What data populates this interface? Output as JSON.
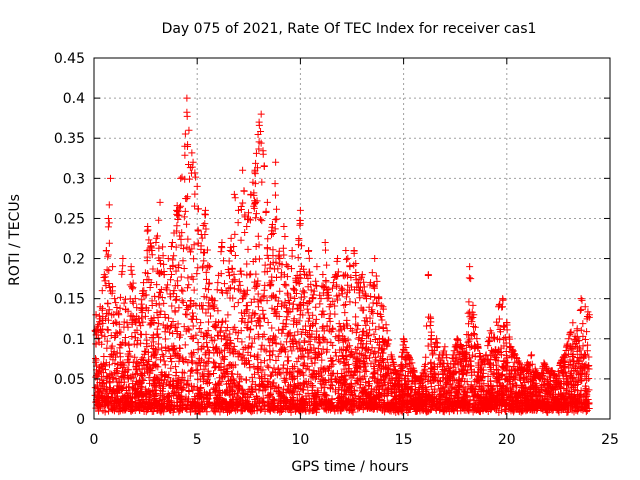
{
  "chart_data": {
    "type": "scatter",
    "title": "Day 075 of 2021, Rate Of TEC Index for receiver cas1",
    "xlabel": "GPS time / hours",
    "ylabel": "ROTI / TECUs",
    "xlim": [
      0,
      25
    ],
    "ylim": [
      0,
      0.45
    ],
    "x_ticks": [
      "0",
      "5",
      "10",
      "15",
      "20",
      "25"
    ],
    "x_tick_values": [
      0,
      5,
      10,
      15,
      20,
      25
    ],
    "y_ticks": [
      "0",
      "0.05",
      "0.1",
      "0.15",
      "0.2",
      "0.25",
      "0.3",
      "0.35",
      "0.4",
      "0.45"
    ],
    "y_tick_values": [
      0,
      0.05,
      0.1,
      0.15,
      0.2,
      0.25,
      0.3,
      0.35,
      0.4,
      0.45
    ],
    "grid": true,
    "marker": "plus",
    "color": "#ff0000",
    "series": [
      {
        "x": [
          0.1,
          0.2,
          0.3,
          0.4,
          0.5,
          0.6,
          0.7,
          0.8,
          0.9,
          1.0,
          1.2,
          1.4,
          1.6,
          1.8,
          2.0,
          2.2,
          2.4,
          2.6,
          2.8,
          3.0,
          3.2,
          3.4,
          3.6,
          3.8,
          4.0,
          4.2,
          4.4,
          4.5,
          4.6,
          4.8,
          5.0,
          5.2,
          5.4,
          5.6,
          5.8,
          6.0,
          6.2,
          6.4,
          6.6,
          6.8,
          7.0,
          7.2,
          7.4,
          7.6,
          7.8,
          8.0,
          8.1,
          8.2,
          8.4,
          8.6,
          8.8,
          9.0,
          9.2,
          9.4,
          9.6,
          9.8,
          10.0,
          10.2,
          10.4,
          10.6,
          10.8,
          11.0,
          11.2,
          11.4,
          11.6,
          11.8,
          12.0,
          12.2,
          12.4,
          12.6,
          12.8,
          13.0,
          13.2,
          13.4,
          13.6,
          13.8,
          14.0,
          14.2,
          14.4,
          14.6,
          14.8,
          15.0,
          15.2,
          15.4,
          15.6,
          15.8,
          16.0,
          16.2,
          16.4,
          16.6,
          16.8,
          17.0,
          17.2,
          17.4,
          17.6,
          17.8,
          18.0,
          18.2,
          18.4,
          18.6,
          18.8,
          19.0,
          19.2,
          19.4,
          19.6,
          19.8,
          20.0,
          20.2,
          20.4,
          20.6,
          20.8,
          21.0,
          21.2,
          21.4,
          21.6,
          21.8,
          22.0,
          22.2,
          22.4,
          22.6,
          22.8,
          23.0,
          23.2,
          23.4,
          23.6,
          23.8,
          24.0
        ],
        "y": [
          0.13,
          0.11,
          0.14,
          0.16,
          0.18,
          0.21,
          0.25,
          0.3,
          0.19,
          0.15,
          0.13,
          0.2,
          0.12,
          0.19,
          0.15,
          0.12,
          0.17,
          0.24,
          0.21,
          0.22,
          0.27,
          0.18,
          0.2,
          0.22,
          0.26,
          0.3,
          0.34,
          0.4,
          0.36,
          0.32,
          0.29,
          0.23,
          0.26,
          0.19,
          0.14,
          0.17,
          0.22,
          0.16,
          0.21,
          0.28,
          0.26,
          0.31,
          0.24,
          0.28,
          0.31,
          0.37,
          0.38,
          0.33,
          0.27,
          0.23,
          0.32,
          0.2,
          0.24,
          0.19,
          0.21,
          0.17,
          0.26,
          0.18,
          0.21,
          0.15,
          0.19,
          0.15,
          0.22,
          0.14,
          0.17,
          0.2,
          0.16,
          0.21,
          0.19,
          0.21,
          0.17,
          0.18,
          0.15,
          0.17,
          0.2,
          0.15,
          0.14,
          0.11,
          0.08,
          0.06,
          0.05,
          0.1,
          0.08,
          0.07,
          0.05,
          0.05,
          0.06,
          0.18,
          0.08,
          0.1,
          0.07,
          0.09,
          0.06,
          0.08,
          0.1,
          0.09,
          0.08,
          0.19,
          0.13,
          0.09,
          0.07,
          0.08,
          0.11,
          0.1,
          0.14,
          0.15,
          0.12,
          0.09,
          0.08,
          0.07,
          0.06,
          0.07,
          0.08,
          0.06,
          0.05,
          0.07,
          0.06,
          0.06,
          0.05,
          0.07,
          0.08,
          0.1,
          0.12,
          0.11,
          0.15,
          0.14,
          0.13
        ]
      }
    ]
  }
}
